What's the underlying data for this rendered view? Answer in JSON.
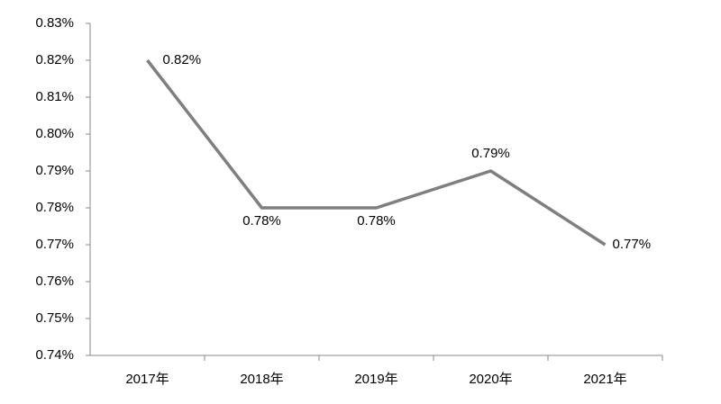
{
  "chart_data": {
    "type": "line",
    "categories": [
      "2017年",
      "2018年",
      "2019年",
      "2020年",
      "2021年"
    ],
    "series": [
      {
        "values": [
          0.82,
          0.78,
          0.78,
          0.79,
          0.77
        ],
        "value_labels": [
          "0.82%",
          "0.78%",
          "0.78%",
          "0.79%",
          "0.77%"
        ],
        "color": "#7f7f7f"
      }
    ],
    "ylim": [
      0.74,
      0.83
    ],
    "yticks": [
      {
        "value": 0.74,
        "label": "0.74%"
      },
      {
        "value": 0.75,
        "label": "0.75%"
      },
      {
        "value": 0.76,
        "label": "0.76%"
      },
      {
        "value": 0.77,
        "label": "0.77%"
      },
      {
        "value": 0.78,
        "label": "0.78%"
      },
      {
        "value": 0.79,
        "label": "0.79%"
      },
      {
        "value": 0.8,
        "label": "0.80%"
      },
      {
        "value": 0.81,
        "label": "0.81%"
      },
      {
        "value": 0.82,
        "label": "0.82%"
      },
      {
        "value": 0.83,
        "label": "0.83%"
      }
    ],
    "grid": false
  }
}
